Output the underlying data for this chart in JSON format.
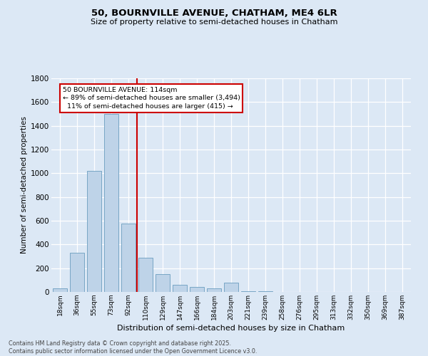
{
  "title_line1": "50, BOURNVILLE AVENUE, CHATHAM, ME4 6LR",
  "title_line2": "Size of property relative to semi-detached houses in Chatham",
  "xlabel": "Distribution of semi-detached houses by size in Chatham",
  "ylabel": "Number of semi-detached properties",
  "categories": [
    "18sqm",
    "36sqm",
    "55sqm",
    "73sqm",
    "92sqm",
    "110sqm",
    "129sqm",
    "147sqm",
    "166sqm",
    "184sqm",
    "203sqm",
    "221sqm",
    "239sqm",
    "258sqm",
    "276sqm",
    "295sqm",
    "313sqm",
    "332sqm",
    "350sqm",
    "369sqm",
    "387sqm"
  ],
  "values": [
    30,
    330,
    1020,
    1500,
    575,
    290,
    150,
    60,
    40,
    30,
    80,
    5,
    5,
    0,
    0,
    0,
    0,
    0,
    0,
    0,
    0
  ],
  "bar_color": "#bed3e8",
  "bar_edge_color": "#6a9dbf",
  "vline_index": 4.5,
  "vline_color": "#cc0000",
  "annotation_text": "50 BOURNVILLE AVENUE: 114sqm\n← 89% of semi-detached houses are smaller (3,494)\n  11% of semi-detached houses are larger (415) →",
  "annotation_box_facecolor": "#ffffff",
  "annotation_box_edgecolor": "#cc0000",
  "ylim_max": 1800,
  "yticks": [
    0,
    200,
    400,
    600,
    800,
    1000,
    1200,
    1400,
    1600,
    1800
  ],
  "bg_color": "#dce8f5",
  "grid_color": "#ffffff",
  "footer": "Contains HM Land Registry data © Crown copyright and database right 2025.\nContains public sector information licensed under the Open Government Licence v3.0."
}
